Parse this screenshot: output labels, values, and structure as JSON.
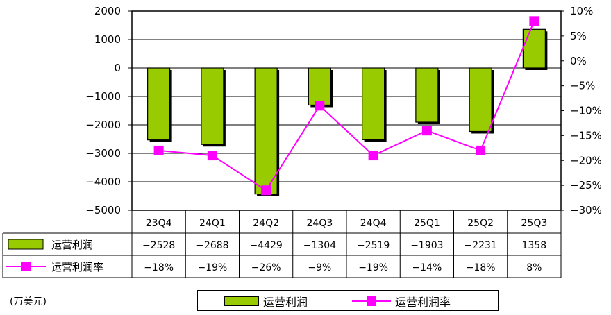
{
  "chart_data": {
    "type": "bar",
    "categories": [
      "23Q4",
      "24Q1",
      "24Q2",
      "24Q3",
      "24Q4",
      "25Q1",
      "25Q2",
      "25Q3"
    ],
    "series": [
      {
        "name": "运营利润",
        "type": "bar",
        "axis": "left",
        "color": "#99cc00",
        "values": [
          -2528,
          -2688,
          -4429,
          -1304,
          -2519,
          -1903,
          -2231,
          1358
        ]
      },
      {
        "name": "运营利润率",
        "type": "line",
        "axis": "right",
        "color": "#ff00ff",
        "values": [
          -18,
          -19,
          -26,
          -9,
          -19,
          -14,
          -18,
          8
        ],
        "labels": [
          "-18%",
          "-19%",
          "-26%",
          "-9%",
          "-19%",
          "-14%",
          "-18%",
          "8%"
        ]
      }
    ],
    "y_left": {
      "min": -5000,
      "max": 2000,
      "ticks": [
        2000,
        1000,
        0,
        -1000,
        -2000,
        -3000,
        -4000,
        -5000
      ]
    },
    "y_right": {
      "min": -30,
      "max": 10,
      "ticks": [
        10,
        5,
        0,
        -5,
        -10,
        -15,
        -20,
        -25,
        -30
      ]
    },
    "unit_label": "(万美元)",
    "grid": true,
    "legend_placement": "bottom"
  }
}
